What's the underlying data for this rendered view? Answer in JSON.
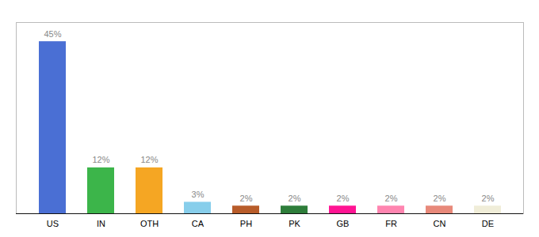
{
  "chart_data": {
    "type": "bar",
    "categories": [
      "US",
      "IN",
      "OTH",
      "CA",
      "PH",
      "PK",
      "GB",
      "FR",
      "CN",
      "DE"
    ],
    "values": [
      45,
      12,
      12,
      3,
      2,
      2,
      2,
      2,
      2,
      2
    ],
    "value_labels": [
      "45%",
      "12%",
      "12%",
      "3%",
      "2%",
      "2%",
      "2%",
      "2%",
      "2%",
      "2%"
    ],
    "colors": [
      "#4A6FD4",
      "#3CB54A",
      "#F5A623",
      "#87CEEB",
      "#B85C2A",
      "#2E7D3A",
      "#FF1493",
      "#FF85B0",
      "#E8897A",
      "#F0EDD8"
    ],
    "ylim": [
      0,
      50
    ],
    "data_labels": true,
    "tick_labels": "x",
    "grid": false
  }
}
